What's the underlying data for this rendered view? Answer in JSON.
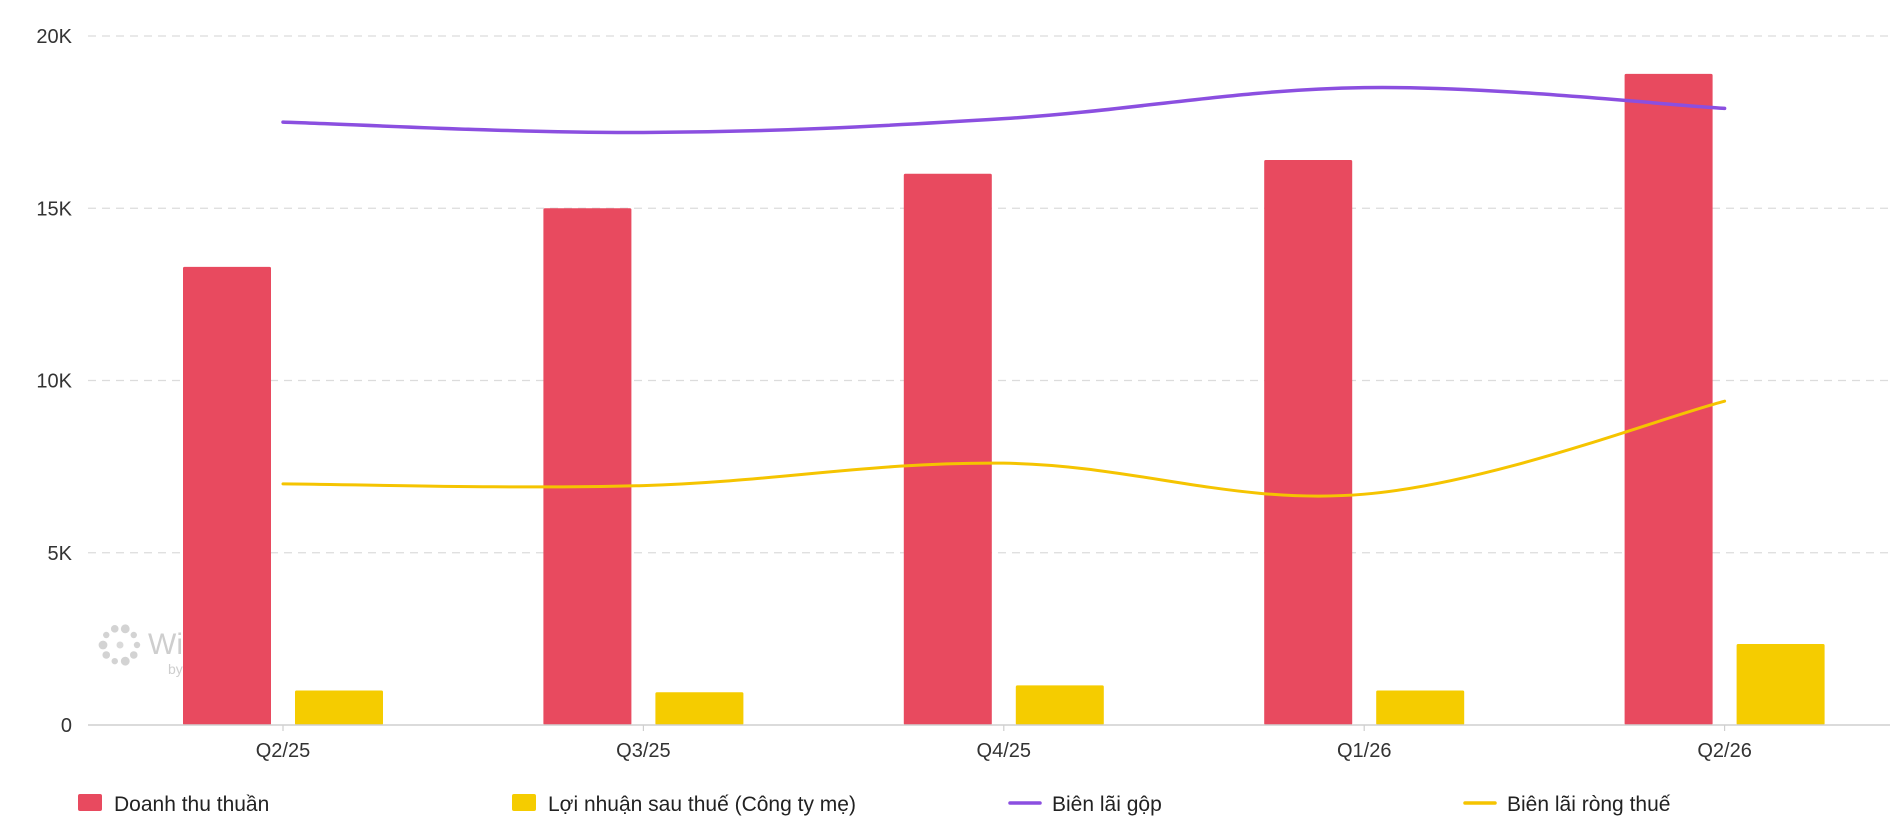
{
  "chart_data": {
    "type": "bar",
    "categories": [
      "Q2/25",
      "Q3/25",
      "Q4/25",
      "Q1/26",
      "Q2/26"
    ],
    "series": [
      {
        "name": "Doanh thu thuần",
        "type": "bar",
        "color": "#e84a5f",
        "values": [
          13300,
          15000,
          16000,
          16400,
          18900
        ]
      },
      {
        "name": "Lợi nhuận sau thuế (Công ty mẹ)",
        "type": "bar",
        "color": "#f5cc00",
        "values": [
          1000,
          950,
          1150,
          1000,
          2350
        ]
      },
      {
        "name": "Biên lãi gộp",
        "type": "line",
        "color": "#8b4fe0",
        "values": [
          17500,
          17200,
          17600,
          18500,
          17900
        ]
      },
      {
        "name": "Biên lãi ròng thuế",
        "type": "line",
        "color": "#f5c400",
        "values": [
          7000,
          6950,
          7600,
          6700,
          9400
        ]
      }
    ],
    "yticks": [
      "0",
      "5K",
      "10K",
      "15K",
      "20K"
    ],
    "ylim": [
      0,
      20000
    ],
    "grid": true,
    "legend_position": "bottom",
    "watermark": {
      "brand": "WiChart",
      "byline": "by WiGroup"
    }
  }
}
